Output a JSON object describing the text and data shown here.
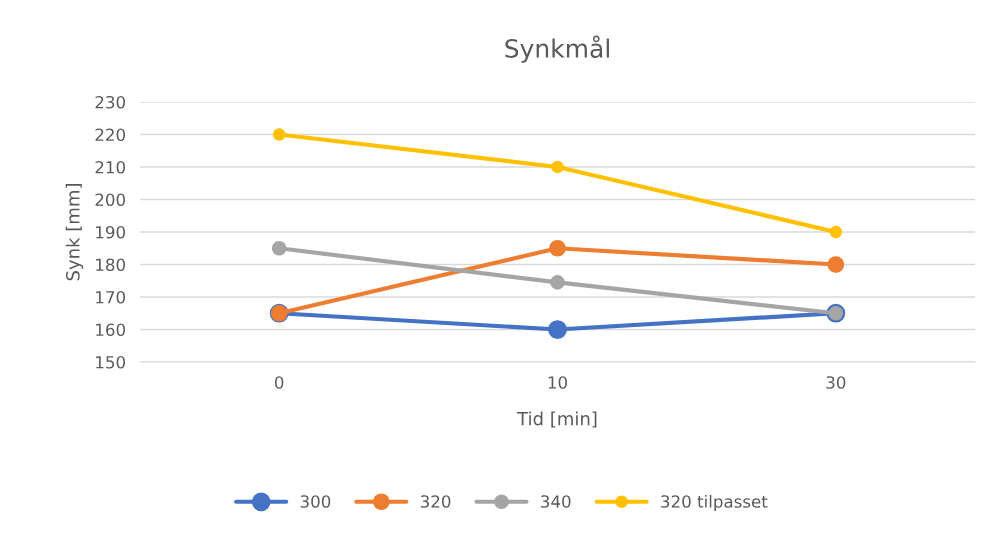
{
  "chart_data": {
    "type": "line",
    "title": "Synkmål",
    "xlabel": "Tid [min]",
    "ylabel": "Synk [mm]",
    "categories": [
      "0",
      "10",
      "30"
    ],
    "series": [
      {
        "name": "300",
        "color": "#4472c4",
        "values": [
          165,
          160,
          165
        ]
      },
      {
        "name": "320",
        "color": "#ed7d31",
        "values": [
          165,
          185,
          180
        ]
      },
      {
        "name": "340",
        "color": "#a5a5a5",
        "values": [
          185,
          174.5,
          165
        ]
      },
      {
        "name": "320 tilpasset",
        "color": "#ffc000",
        "values": [
          220,
          210,
          190
        ]
      }
    ],
    "ylim": [
      150,
      230
    ],
    "yticks": [
      150,
      160,
      170,
      180,
      190,
      200,
      210,
      220,
      230
    ],
    "grid": "y",
    "legend": "bottom",
    "marker": "circle",
    "line_style": "solid"
  }
}
